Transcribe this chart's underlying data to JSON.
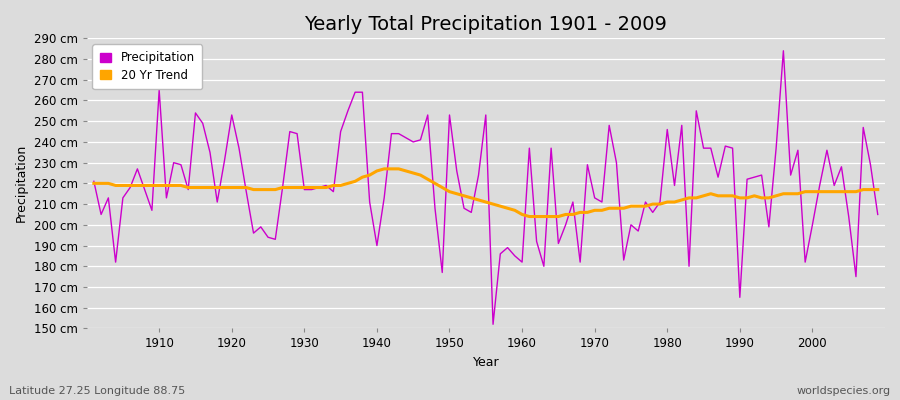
{
  "title": "Yearly Total Precipitation 1901 - 2009",
  "xlabel": "Year",
  "ylabel": "Precipitation",
  "background_color": "#dcdcdc",
  "plot_bg_color": "#dcdcdc",
  "precip_color": "#cc00cc",
  "trend_color": "#ffa500",
  "ylim": [
    150,
    290
  ],
  "ytick_step": 10,
  "years": [
    1901,
    1902,
    1903,
    1904,
    1905,
    1906,
    1907,
    1908,
    1909,
    1910,
    1911,
    1912,
    1913,
    1914,
    1915,
    1916,
    1917,
    1918,
    1919,
    1920,
    1921,
    1922,
    1923,
    1924,
    1925,
    1926,
    1927,
    1928,
    1929,
    1930,
    1931,
    1932,
    1933,
    1934,
    1935,
    1936,
    1937,
    1938,
    1939,
    1940,
    1941,
    1942,
    1943,
    1944,
    1945,
    1946,
    1947,
    1948,
    1949,
    1950,
    1951,
    1952,
    1953,
    1954,
    1955,
    1956,
    1957,
    1958,
    1959,
    1960,
    1961,
    1962,
    1963,
    1964,
    1965,
    1966,
    1967,
    1968,
    1969,
    1970,
    1971,
    1972,
    1973,
    1974,
    1975,
    1976,
    1977,
    1978,
    1979,
    1980,
    1981,
    1982,
    1983,
    1984,
    1985,
    1986,
    1987,
    1988,
    1989,
    1990,
    1991,
    1992,
    1993,
    1994,
    1995,
    1996,
    1997,
    1998,
    1999,
    2000,
    2001,
    2002,
    2003,
    2004,
    2005,
    2006,
    2007,
    2008,
    2009
  ],
  "precip": [
    221,
    205,
    213,
    182,
    213,
    218,
    227,
    217,
    207,
    265,
    213,
    230,
    229,
    217,
    254,
    249,
    235,
    211,
    231,
    253,
    237,
    216,
    196,
    199,
    194,
    193,
    218,
    245,
    244,
    217,
    217,
    218,
    219,
    216,
    245,
    255,
    264,
    264,
    211,
    190,
    213,
    244,
    244,
    242,
    240,
    241,
    253,
    208,
    177,
    253,
    226,
    208,
    206,
    224,
    253,
    152,
    186,
    189,
    185,
    182,
    237,
    192,
    180,
    237,
    191,
    200,
    211,
    182,
    229,
    213,
    211,
    248,
    230,
    183,
    200,
    197,
    211,
    206,
    211,
    246,
    219,
    248,
    180,
    255,
    237,
    237,
    223,
    238,
    237,
    165,
    222,
    223,
    224,
    199,
    237,
    284,
    224,
    236,
    182,
    200,
    219,
    236,
    219,
    228,
    204,
    175,
    247,
    229,
    205
  ],
  "trend": [
    220,
    220,
    220,
    219,
    219,
    219,
    219,
    219,
    219,
    219,
    219,
    219,
    219,
    218,
    218,
    218,
    218,
    218,
    218,
    218,
    218,
    218,
    217,
    217,
    217,
    217,
    218,
    218,
    218,
    218,
    218,
    218,
    218,
    219,
    219,
    220,
    221,
    223,
    224,
    226,
    227,
    227,
    227,
    226,
    225,
    224,
    222,
    220,
    218,
    216,
    215,
    214,
    213,
    212,
    211,
    210,
    209,
    208,
    207,
    205,
    204,
    204,
    204,
    204,
    204,
    205,
    205,
    206,
    206,
    207,
    207,
    208,
    208,
    208,
    209,
    209,
    209,
    210,
    210,
    211,
    211,
    212,
    213,
    213,
    214,
    215,
    214,
    214,
    214,
    213,
    213,
    214,
    213,
    213,
    214,
    215,
    215,
    215,
    216,
    216,
    216,
    216,
    216,
    216,
    216,
    216,
    217,
    217,
    217
  ],
  "legend_labels": [
    "Precipitation",
    "20 Yr Trend"
  ],
  "footnote_left": "Latitude 27.25 Longitude 88.75",
  "footnote_right": "worldspecies.org",
  "title_fontsize": 14,
  "axis_fontsize": 9,
  "tick_fontsize": 8.5,
  "footnote_fontsize": 8
}
